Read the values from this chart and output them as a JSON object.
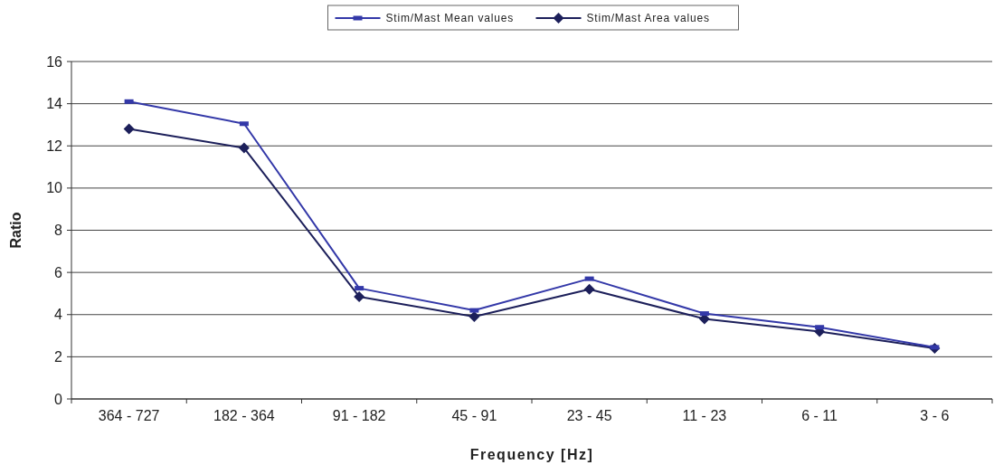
{
  "chart_data": {
    "type": "line",
    "xlabel": "Frequency [Hz]",
    "ylabel": "Ratio",
    "categories": [
      "364 - 727",
      "182 - 364",
      "91 - 182",
      "45 - 91",
      "23 - 45",
      "11 - 23",
      "6 - 11",
      "3 - 6"
    ],
    "series": [
      {
        "name": "Stim/Mast Mean values",
        "color": "#3338a8",
        "marker": "square",
        "values": [
          14.1,
          13.05,
          5.25,
          4.2,
          5.7,
          4.05,
          3.4,
          2.45
        ]
      },
      {
        "name": "Stim/Mast Area values",
        "color": "#1c1f5a",
        "marker": "diamond",
        "values": [
          12.8,
          11.9,
          4.85,
          3.9,
          5.2,
          3.8,
          3.2,
          2.4
        ]
      }
    ],
    "ylim": [
      0,
      16
    ],
    "yticks": [
      0,
      2,
      4,
      6,
      8,
      10,
      12,
      14,
      16
    ],
    "grid": "y",
    "legend": "top"
  }
}
